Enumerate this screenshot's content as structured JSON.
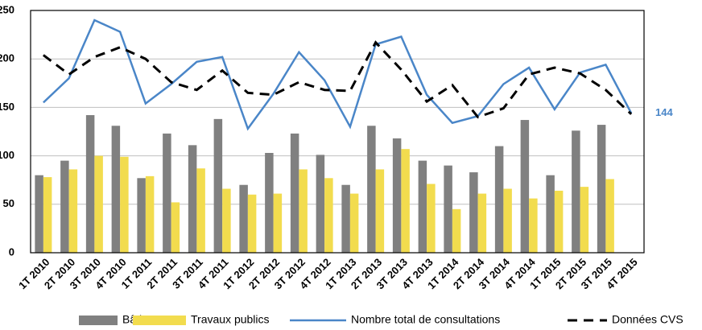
{
  "chart_data": {
    "type": "bar-line",
    "categories": [
      "1T 2010",
      "2T 2010",
      "3T 2010",
      "4T 2010",
      "1T 2011",
      "2T 2011",
      "3T 2011",
      "4T 2011",
      "1T 2012",
      "2T 2012",
      "3T 2012",
      "4T 2012",
      "1T 2013",
      "2T 2013",
      "3T 2013",
      "4T 2013",
      "1T 2014",
      "2T 2014",
      "3T 2014",
      "4T 2014",
      "1T 2015",
      "2T 2015",
      "3T 2015",
      "4T 2015"
    ],
    "series": [
      {
        "name": "Bâtiment",
        "type": "bar",
        "color": "#808080",
        "values": [
          80,
          95,
          142,
          131,
          77,
          123,
          111,
          138,
          70,
          103,
          123,
          101,
          70,
          131,
          118,
          95,
          90,
          83,
          110,
          137,
          80,
          126,
          132,
          null
        ]
      },
      {
        "name": "Travaux publics",
        "type": "bar",
        "color": "#f2dc4e",
        "values": [
          78,
          86,
          100,
          99,
          79,
          52,
          87,
          66,
          60,
          61,
          86,
          77,
          61,
          86,
          107,
          71,
          45,
          61,
          66,
          56,
          64,
          68,
          76,
          null
        ]
      },
      {
        "name": "Nombre total de consultations",
        "type": "line",
        "color": "#4a86c8",
        "values": [
          155,
          180,
          240,
          228,
          154,
          174,
          197,
          202,
          128,
          164,
          207,
          178,
          130,
          215,
          223,
          163,
          134,
          141,
          174,
          191,
          148,
          186,
          194,
          144
        ],
        "value_labels": [
          null,
          null,
          null,
          null,
          null,
          null,
          null,
          null,
          null,
          null,
          null,
          null,
          null,
          null,
          null,
          null,
          null,
          null,
          null,
          null,
          null,
          null,
          null,
          "144"
        ]
      },
      {
        "name": "Données CVS",
        "type": "line",
        "dashed": true,
        "color": "#000000",
        "values": [
          204,
          184,
          202,
          212,
          200,
          176,
          168,
          188,
          165,
          163,
          176,
          168,
          167,
          217,
          189,
          156,
          173,
          140,
          149,
          184,
          191,
          185,
          168,
          143
        ]
      }
    ],
    "ylim": [
      0,
      250
    ],
    "yticks": [
      0,
      50,
      100,
      150,
      200,
      250
    ],
    "grid": true,
    "legend": "bottom"
  }
}
